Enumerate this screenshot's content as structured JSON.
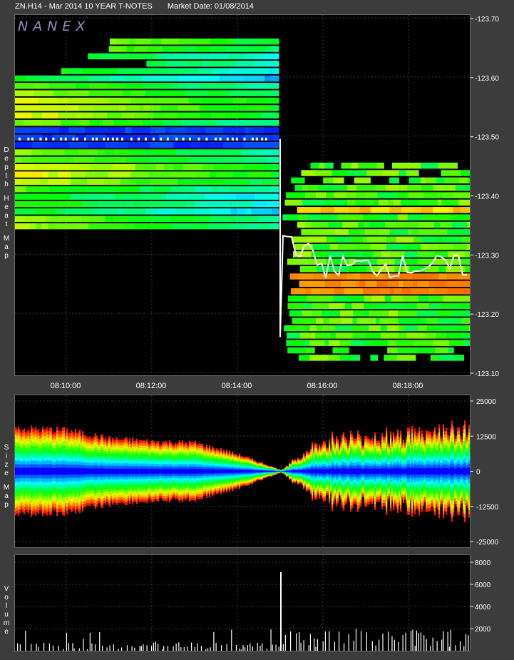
{
  "header": {
    "symbol": "ZN.H14 - Mar 2014 10 YEAR T-NOTES",
    "market_date": "Market Date: 01/08/2014"
  },
  "watermark": "NANEX",
  "panels": {
    "heatmap_label": "Depth Heat Map",
    "sizemap_label": "Size Map",
    "volume_label": "Volume"
  },
  "colors": {
    "background": "#000000",
    "frame": "#3c3c3c",
    "grid": "#5a5a5a",
    "text": "#ffffff"
  },
  "chart_data": [
    {
      "type": "heatmap",
      "name": "Depth Heat Map",
      "x_ticks": [
        "08:10:00",
        "08:12:00",
        "08:14:00",
        "08:16:00",
        "08:18:00"
      ],
      "y_ticks": [
        "123.70",
        "123.60",
        "123.50",
        "123.40",
        "123.30",
        "123.20",
        "123.10"
      ],
      "ylim": [
        123.1,
        123.7
      ],
      "event_time": "08:15:00",
      "price_before": 123.495,
      "price_after_low": 123.16,
      "price_after": 123.28,
      "grid": true
    },
    {
      "type": "area",
      "name": "Size Map",
      "x_ticks": [
        "08:10:00",
        "08:12:00",
        "08:14:00",
        "08:16:00",
        "08:18:00"
      ],
      "y_ticks": [
        "25000",
        "12500",
        "0",
        "-12500",
        "-25000"
      ],
      "ylim": [
        -25000,
        25000
      ],
      "envelope": {
        "times": [
          "08:09",
          "08:10",
          "08:11",
          "08:12",
          "08:13",
          "08:14",
          "08:15",
          "08:16",
          "08:17",
          "08:18",
          "08:19"
        ],
        "values": [
          15000,
          14500,
          11500,
          10500,
          10000,
          6000,
          500,
          11500,
          12500,
          14000,
          15000
        ]
      },
      "grid": true
    },
    {
      "type": "bar",
      "name": "Volume",
      "y_ticks": [
        "8000",
        "6000",
        "4000",
        "2000"
      ],
      "ylim": [
        0,
        8000
      ],
      "spike_time": "08:15:00",
      "spike_value": 7100,
      "grid": true
    }
  ]
}
